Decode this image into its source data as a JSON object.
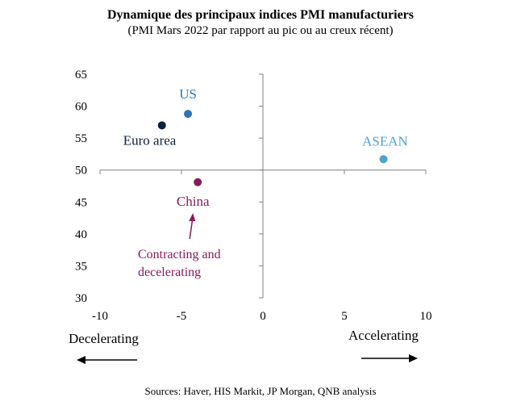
{
  "title": "Dynamique des principaux indices PMI manufacturiers",
  "subtitle": "(PMI Mars 2022 par rapport au pic ou au creux récent)",
  "source": "Sources: Haver, HIS Markit, JP Morgan, QNB analysis",
  "chart_data": {
    "type": "scatter",
    "xlim": [
      -10,
      10
    ],
    "ylim": [
      30,
      65
    ],
    "x_cross": 50,
    "xticks": [
      "-10",
      "-5",
      "0",
      "5",
      "10"
    ],
    "xtick_values": [
      -10,
      -5,
      0,
      5,
      10
    ],
    "yticks": [
      "30",
      "35",
      "40",
      "45",
      "50",
      "55",
      "60",
      "65"
    ],
    "ytick_values": [
      30,
      35,
      40,
      45,
      50,
      55,
      60,
      65
    ],
    "points": [
      {
        "label": "US",
        "x": -4.6,
        "y": 58.8,
        "color": "#2e75b6"
      },
      {
        "label": "Euro area",
        "x": -6.2,
        "y": 57.0,
        "color": "#0f1f3d"
      },
      {
        "label": "ASEAN",
        "x": 7.4,
        "y": 51.7,
        "color": "#4fa3cd"
      },
      {
        "label": "China",
        "x": -4.0,
        "y": 48.1,
        "color": "#8b1a5a"
      }
    ],
    "annotation": {
      "line1": "Contracting and",
      "line2": "decelerating",
      "color": "#8b1a5a"
    },
    "left_arrow_label": "Decelerating",
    "right_arrow_label": "Accelerating",
    "grid": false
  }
}
